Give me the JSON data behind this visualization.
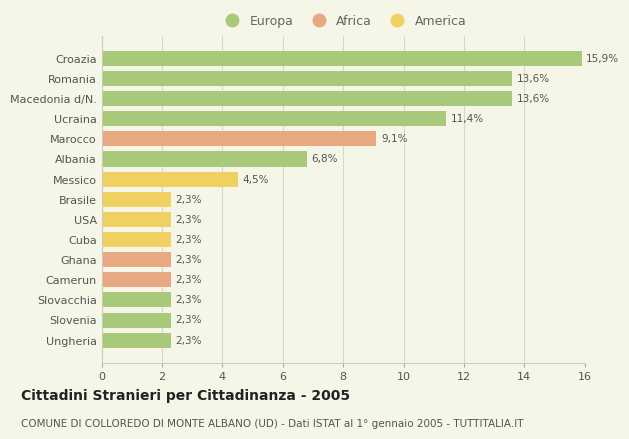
{
  "categories": [
    "Ungheria",
    "Slovenia",
    "Slovacchia",
    "Camerun",
    "Ghana",
    "Cuba",
    "USA",
    "Brasile",
    "Messico",
    "Albania",
    "Marocco",
    "Ucraina",
    "Macedonia d/N.",
    "Romania",
    "Croazia"
  ],
  "values": [
    2.3,
    2.3,
    2.3,
    2.3,
    2.3,
    2.3,
    2.3,
    2.3,
    4.5,
    6.8,
    9.1,
    11.4,
    13.6,
    13.6,
    15.9
  ],
  "colors": [
    "#a8c87a",
    "#a8c87a",
    "#a8c87a",
    "#e8a882",
    "#e8a882",
    "#f0d060",
    "#f0d060",
    "#f0d060",
    "#f0d060",
    "#a8c87a",
    "#e8a882",
    "#a8c87a",
    "#a8c87a",
    "#a8c87a",
    "#a8c87a"
  ],
  "labels": [
    "2,3%",
    "2,3%",
    "2,3%",
    "2,3%",
    "2,3%",
    "2,3%",
    "2,3%",
    "2,3%",
    "4,5%",
    "6,8%",
    "9,1%",
    "11,4%",
    "13,6%",
    "13,6%",
    "15,9%"
  ],
  "legend": {
    "Europa": "#a8c87a",
    "Africa": "#e8a882",
    "America": "#f0d060"
  },
  "title": "Cittadini Stranieri per Cittadinanza - 2005",
  "subtitle": "COMUNE DI COLLOREDO DI MONTE ALBANO (UD) - Dati ISTAT al 1° gennaio 2005 - TUTTITALIA.IT",
  "xlim": [
    0,
    16
  ],
  "xticks": [
    0,
    2,
    4,
    6,
    8,
    10,
    12,
    14,
    16
  ],
  "background_color": "#f5f5e8",
  "grid_color": "#d8d8c8",
  "bar_height": 0.75,
  "title_fontsize": 10,
  "subtitle_fontsize": 7.5,
  "label_fontsize": 7.5,
  "tick_fontsize": 8,
  "legend_fontsize": 9
}
